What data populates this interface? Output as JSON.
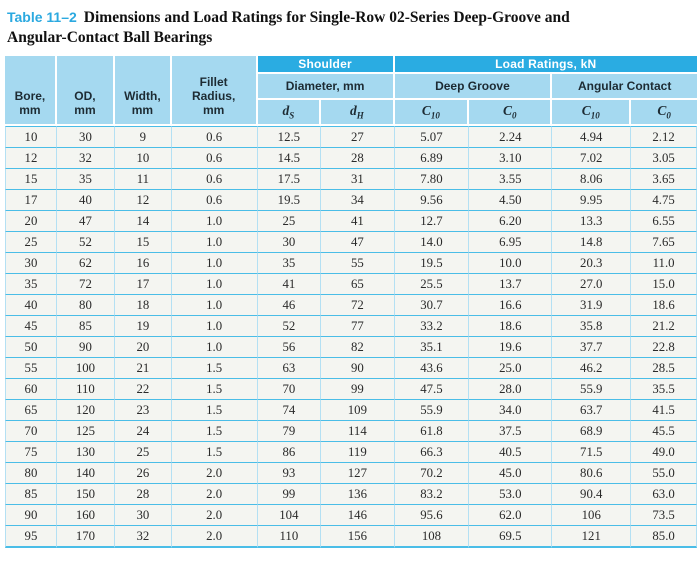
{
  "title": {
    "tag": "Table 11–2",
    "line1": "Dimensions and Load Ratings for Single-Row 02-Series Deep-Groove and",
    "line2": "Angular-Contact Ball Bearings"
  },
  "colors": {
    "accent_blue": "#2AACE2",
    "light_blue": "#A5D9F0",
    "grid_cyan": "#4ABDE7",
    "grid_light": "#B4E0F3",
    "title_tag_blue": "#2BA9E0"
  },
  "table": {
    "left_headers": [
      {
        "lines": [
          "Bore,",
          "mm"
        ]
      },
      {
        "lines": [
          "OD,",
          "mm"
        ]
      },
      {
        "lines": [
          "Width,",
          "mm"
        ]
      },
      {
        "lines": [
          "Fillet",
          "Radius,",
          "mm"
        ]
      }
    ],
    "group_headers": {
      "shoulder": "Shoulder",
      "load_ratings": "Load Ratings, kN",
      "diameter": "Diameter, mm",
      "deep_groove": "Deep Groove",
      "angular_contact": "Angular Contact"
    },
    "symbols": [
      {
        "base": "d",
        "sub": "S"
      },
      {
        "base": "d",
        "sub": "H"
      },
      {
        "base": "C",
        "sub": "10"
      },
      {
        "base": "C",
        "sub": "0"
      },
      {
        "base": "C",
        "sub": "10"
      },
      {
        "base": "C",
        "sub": "0"
      }
    ],
    "column_keys": [
      "bore",
      "od",
      "width",
      "fillet_radius",
      "ds",
      "dh",
      "dg_c10",
      "dg_c0",
      "ac_c10",
      "ac_c0"
    ],
    "rows": [
      [
        "10",
        "30",
        "9",
        "0.6",
        "12.5",
        "27",
        "5.07",
        "2.24",
        "4.94",
        "2.12"
      ],
      [
        "12",
        "32",
        "10",
        "0.6",
        "14.5",
        "28",
        "6.89",
        "3.10",
        "7.02",
        "3.05"
      ],
      [
        "15",
        "35",
        "11",
        "0.6",
        "17.5",
        "31",
        "7.80",
        "3.55",
        "8.06",
        "3.65"
      ],
      [
        "17",
        "40",
        "12",
        "0.6",
        "19.5",
        "34",
        "9.56",
        "4.50",
        "9.95",
        "4.75"
      ],
      [
        "20",
        "47",
        "14",
        "1.0",
        "25",
        "41",
        "12.7",
        "6.20",
        "13.3",
        "6.55"
      ],
      [
        "25",
        "52",
        "15",
        "1.0",
        "30",
        "47",
        "14.0",
        "6.95",
        "14.8",
        "7.65"
      ],
      [
        "30",
        "62",
        "16",
        "1.0",
        "35",
        "55",
        "19.5",
        "10.0",
        "20.3",
        "11.0"
      ],
      [
        "35",
        "72",
        "17",
        "1.0",
        "41",
        "65",
        "25.5",
        "13.7",
        "27.0",
        "15.0"
      ],
      [
        "40",
        "80",
        "18",
        "1.0",
        "46",
        "72",
        "30.7",
        "16.6",
        "31.9",
        "18.6"
      ],
      [
        "45",
        "85",
        "19",
        "1.0",
        "52",
        "77",
        "33.2",
        "18.6",
        "35.8",
        "21.2"
      ],
      [
        "50",
        "90",
        "20",
        "1.0",
        "56",
        "82",
        "35.1",
        "19.6",
        "37.7",
        "22.8"
      ],
      [
        "55",
        "100",
        "21",
        "1.5",
        "63",
        "90",
        "43.6",
        "25.0",
        "46.2",
        "28.5"
      ],
      [
        "60",
        "110",
        "22",
        "1.5",
        "70",
        "99",
        "47.5",
        "28.0",
        "55.9",
        "35.5"
      ],
      [
        "65",
        "120",
        "23",
        "1.5",
        "74",
        "109",
        "55.9",
        "34.0",
        "63.7",
        "41.5"
      ],
      [
        "70",
        "125",
        "24",
        "1.5",
        "79",
        "114",
        "61.8",
        "37.5",
        "68.9",
        "45.5"
      ],
      [
        "75",
        "130",
        "25",
        "1.5",
        "86",
        "119",
        "66.3",
        "40.5",
        "71.5",
        "49.0"
      ],
      [
        "80",
        "140",
        "26",
        "2.0",
        "93",
        "127",
        "70.2",
        "45.0",
        "80.6",
        "55.0"
      ],
      [
        "85",
        "150",
        "28",
        "2.0",
        "99",
        "136",
        "83.2",
        "53.0",
        "90.4",
        "63.0"
      ],
      [
        "90",
        "160",
        "30",
        "2.0",
        "104",
        "146",
        "95.6",
        "62.0",
        "106",
        "73.5"
      ],
      [
        "95",
        "170",
        "32",
        "2.0",
        "110",
        "156",
        "108",
        "69.5",
        "121",
        "85.0"
      ]
    ]
  }
}
